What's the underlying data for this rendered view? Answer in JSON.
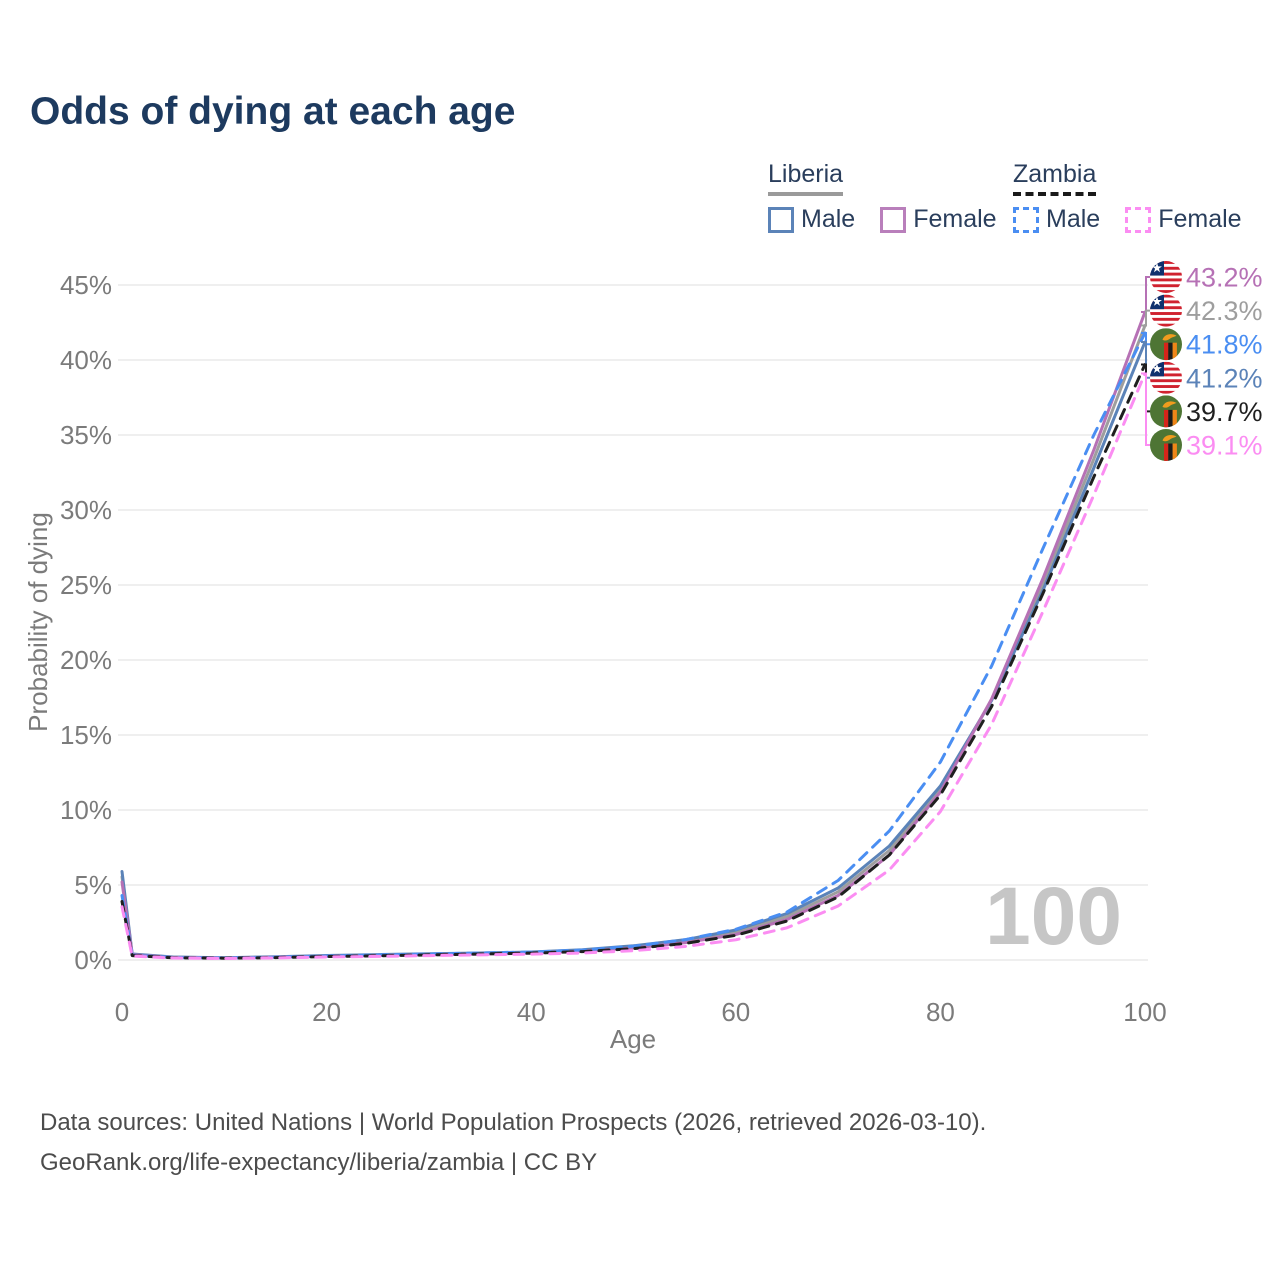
{
  "title": "Odds of dying at each age",
  "legend": {
    "groups": [
      {
        "country": "Liberia",
        "line_style": "solid",
        "underline_color": "#9a9a9a",
        "items": [
          {
            "label": "Male",
            "color": "#5b83b8",
            "dash": "solid"
          },
          {
            "label": "Female",
            "color": "#b97fbb",
            "dash": "solid"
          }
        ]
      },
      {
        "country": "Zambia",
        "line_style": "dashed",
        "underline_color": "#1a1a1a",
        "items": [
          {
            "label": "Male",
            "color": "#4a8ef2",
            "dash": "dashed"
          },
          {
            "label": "Female",
            "color": "#fb8df2",
            "dash": "dashed"
          }
        ]
      }
    ]
  },
  "chart_data": {
    "type": "line",
    "title": "Odds of dying at each age",
    "xlabel": "Age",
    "ylabel": "Probability of dying",
    "xlim": [
      0,
      100
    ],
    "ylim": [
      0,
      45
    ],
    "x_ticks": [
      0,
      20,
      40,
      60,
      80,
      100
    ],
    "y_ticks": [
      0,
      5,
      10,
      15,
      20,
      25,
      30,
      35,
      40,
      45
    ],
    "y_tick_suffix": "%",
    "grid": "horizontal",
    "legend_position": "top-right",
    "watermark": "100",
    "x": [
      0,
      1,
      5,
      10,
      15,
      20,
      25,
      30,
      35,
      40,
      45,
      50,
      55,
      60,
      65,
      70,
      75,
      80,
      85,
      90,
      95,
      100
    ],
    "series": [
      {
        "id": "liberia-all",
        "name": "Liberia (both sexes)",
        "country": "Liberia",
        "group": "All",
        "color": "#9e9e9e",
        "dash": "solid",
        "flag": "flag-liberia",
        "end_label": "42.3%",
        "values": [
          5.55,
          0.38,
          0.19,
          0.14,
          0.2,
          0.27,
          0.32,
          0.38,
          0.43,
          0.49,
          0.63,
          0.87,
          1.25,
          1.85,
          2.9,
          4.55,
          7.3,
          11.4,
          17.35,
          25.0,
          33.4,
          42.3
        ]
      },
      {
        "id": "liberia-male",
        "name": "Liberia Male",
        "country": "Liberia",
        "group": "Male",
        "color": "#5b83b8",
        "dash": "solid",
        "flag": "flag-liberia",
        "end_label": "41.2%",
        "values": [
          5.9,
          0.4,
          0.2,
          0.15,
          0.22,
          0.3,
          0.36,
          0.42,
          0.47,
          0.53,
          0.68,
          0.95,
          1.35,
          2.0,
          3.1,
          4.8,
          7.6,
          11.6,
          17.3,
          24.6,
          32.8,
          41.2
        ]
      },
      {
        "id": "liberia-female",
        "name": "Liberia Female",
        "country": "Liberia",
        "group": "Female",
        "color": "#b671b5",
        "dash": "solid",
        "flag": "flag-liberia",
        "end_label": "43.2%",
        "values": [
          5.2,
          0.35,
          0.17,
          0.13,
          0.18,
          0.24,
          0.29,
          0.34,
          0.39,
          0.45,
          0.58,
          0.8,
          1.15,
          1.7,
          2.7,
          4.3,
          7.0,
          11.2,
          17.4,
          25.4,
          34.0,
          43.2
        ]
      },
      {
        "id": "zambia-male",
        "name": "Zambia Male",
        "country": "Zambia",
        "group": "Male",
        "color": "#4a8ef2",
        "dash": "dashed",
        "flag": "flag-zambia",
        "end_label": "41.8%",
        "values": [
          4.3,
          0.32,
          0.16,
          0.13,
          0.18,
          0.26,
          0.33,
          0.4,
          0.47,
          0.53,
          0.66,
          0.92,
          1.35,
          2.05,
          3.2,
          5.3,
          8.6,
          13.2,
          19.6,
          27.4,
          35.0,
          41.8
        ]
      },
      {
        "id": "zambia-all",
        "name": "Zambia (both sexes)",
        "country": "Zambia",
        "group": "All",
        "color": "#1f1f1f",
        "dash": "dashed",
        "flag": "flag-zambia",
        "end_label": "39.7%",
        "values": [
          3.9,
          0.29,
          0.15,
          0.12,
          0.16,
          0.23,
          0.28,
          0.34,
          0.4,
          0.46,
          0.56,
          0.76,
          1.1,
          1.65,
          2.6,
          4.2,
          7.0,
          11.0,
          16.9,
          24.4,
          32.2,
          39.7
        ]
      },
      {
        "id": "zambia-female",
        "name": "Zambia Female",
        "country": "Zambia",
        "group": "Female",
        "color": "#fb8df2",
        "dash": "dashed",
        "flag": "flag-zambia",
        "end_label": "39.1%",
        "values": [
          3.55,
          0.26,
          0.13,
          0.1,
          0.14,
          0.2,
          0.24,
          0.29,
          0.34,
          0.39,
          0.47,
          0.62,
          0.9,
          1.35,
          2.15,
          3.6,
          6.0,
          9.9,
          15.7,
          23.2,
          31.0,
          39.1
        ]
      }
    ]
  },
  "footer": {
    "line1": "Data sources: United Nations | World Population Prospects (2026, retrieved 2026-03-10).",
    "line2": "GeoRank.org/life-expectancy/liberia/zambia | CC BY"
  }
}
